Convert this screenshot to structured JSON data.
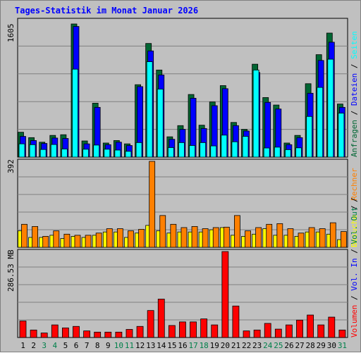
{
  "chart_data": {
    "type": "bar",
    "title": "Tages-Statistik im Monat Januar 2026",
    "colors": {
      "background": "#c0c0c0",
      "title": "#0000ff",
      "anfragen": "#006633",
      "dateien": "#0000ff",
      "seiten": "#00ffff",
      "besuche": "#ffff00",
      "rechner": "#ff8000",
      "volumen": "#ff0000",
      "weekend_label": "#00804a",
      "weekday_label": "#000000"
    },
    "categories": [
      "1",
      "2",
      "3",
      "4",
      "5",
      "6",
      "7",
      "8",
      "9",
      "10",
      "11",
      "12",
      "13",
      "14",
      "15",
      "16",
      "17",
      "18",
      "19",
      "20",
      "21",
      "22",
      "23",
      "24",
      "25",
      "26",
      "27",
      "28",
      "29",
      "30",
      "31"
    ],
    "weekend_days": [
      "3",
      "4",
      "10",
      "11",
      "17",
      "18",
      "24",
      "25",
      "31"
    ],
    "panels": [
      {
        "id": "hits",
        "max_label": "1605",
        "max_value": 1605,
        "legend": [
          "Anfragen",
          "/",
          "Dateien",
          "/",
          "Seiten"
        ],
        "legend_colors": [
          "#006633",
          "#000000",
          "#0000ff",
          "#000000",
          "#00ffff"
        ],
        "series": [
          {
            "name": "Anfragen",
            "values": [
              300,
              235,
              180,
              262,
              270,
              1605,
              195,
              650,
              170,
              200,
              160,
              873,
              1370,
              1050,
              245,
              380,
              755,
              385,
              665,
              862,
              418,
              335,
              1120,
              718,
              628,
              170,
              262,
              885,
              1235,
              1495,
              640
            ]
          },
          {
            "name": "Dateien",
            "values": [
              250,
              200,
              165,
              230,
              225,
              1575,
              160,
              600,
              150,
              180,
              140,
              850,
              1280,
              990,
              215,
              335,
              710,
              345,
              620,
              825,
              380,
              315,
              1020,
              660,
              580,
              150,
              235,
              770,
              1165,
              1385,
              600
            ]
          },
          {
            "name": "Seiten",
            "values": [
              160,
              150,
              92,
              152,
              98,
              1060,
              95,
              145,
              95,
              85,
              70,
              175,
              1150,
              820,
              115,
              175,
              140,
              175,
              135,
              265,
              185,
              250,
              1050,
              110,
              120,
              90,
              112,
              490,
              840,
              1180,
              530
            ]
          }
        ]
      },
      {
        "id": "visits",
        "max_label": "392",
        "max_value": 392,
        "legend": [
          "Besuche",
          "/",
          "Rechner"
        ],
        "legend_colors": [
          "#ffff00",
          "#000000",
          "#ff8000"
        ],
        "series": [
          {
            "name": "Besuche",
            "values": [
              75,
              45,
              45,
              55,
              40,
              50,
              45,
              55,
              70,
              70,
              45,
              65,
              100,
              75,
              65,
              70,
              70,
              70,
              80,
              90,
              55,
              50,
              60,
              85,
              55,
              55,
              50,
              70,
              70,
              60,
              35
            ]
          },
          {
            "name": "Rechner",
            "values": [
              105,
              95,
              50,
              75,
              60,
              55,
              55,
              65,
              85,
              85,
              75,
              82,
              392,
              145,
              105,
              90,
              95,
              85,
              90,
              92,
              145,
              75,
              90,
              105,
              108,
              85,
              65,
              90,
              85,
              112,
              72
            ]
          }
        ]
      },
      {
        "id": "volume",
        "max_label": "286.53 MB",
        "max_value": 286.53,
        "legend": [
          "Volumen",
          "/",
          "Vol. In",
          "/",
          "Vol. Out",
          "/"
        ],
        "legend_colors": [
          "#ff0000",
          "#000000",
          "#0000ff",
          "#000000",
          "#00804a",
          "#000000"
        ],
        "series": [
          {
            "name": "Volumen",
            "values": [
              55,
              25,
              15,
              42,
              32,
              37,
              22,
              18,
              18,
              18,
              27,
              37,
              90,
              128,
              40,
              52,
              52,
              62,
              42,
              286.53,
              105,
              22,
              25,
              47,
              28,
              42,
              58,
              75,
              42,
              68,
              25
            ]
          }
        ]
      }
    ]
  }
}
